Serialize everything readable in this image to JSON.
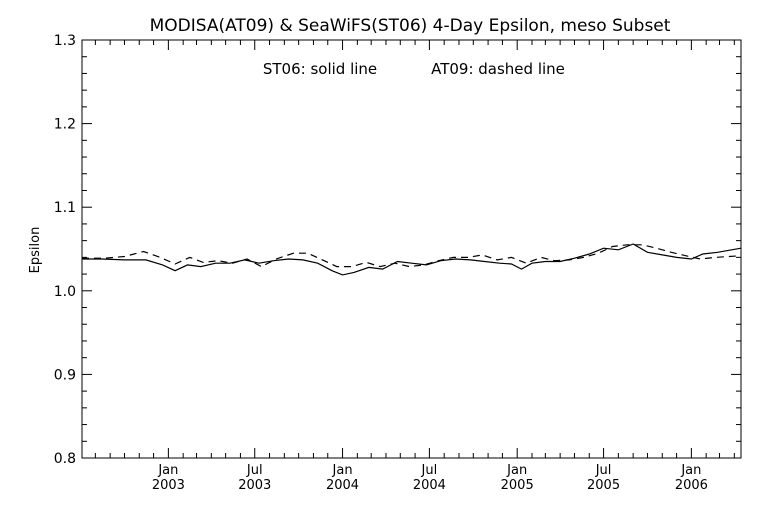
{
  "chart_data": {
    "type": "line",
    "title": "MODISA(AT09) & SeaWiFS(ST06) 4-Day Epsilon, meso Subset",
    "annotations": [
      "ST06: solid line",
      "AT09: dashed line"
    ],
    "xlabel": "",
    "ylabel": "Epsilon",
    "ylim": [
      0.8,
      1.3
    ],
    "yticks": [
      "0.8",
      "0.9",
      "1.0",
      "1.1",
      "1.2",
      "1.3"
    ],
    "xlim": [
      "2002-07-04",
      "2006-04-15"
    ],
    "xticks": [
      {
        "date": "2003-01-01",
        "label1": "Jan",
        "label2": "2003"
      },
      {
        "date": "2003-07-01",
        "label1": "Jul",
        "label2": "2003"
      },
      {
        "date": "2004-01-01",
        "label1": "Jan",
        "label2": "2004"
      },
      {
        "date": "2004-07-01",
        "label1": "Jul",
        "label2": "2004"
      },
      {
        "date": "2005-01-01",
        "label1": "Jan",
        "label2": "2005"
      },
      {
        "date": "2005-07-01",
        "label1": "Jul",
        "label2": "2005"
      },
      {
        "date": "2006-01-01",
        "label1": "Jan",
        "label2": "2006"
      }
    ],
    "grid": false,
    "series": [
      {
        "name": "ST06",
        "style": "solid",
        "color": "#000000",
        "points": [
          [
            "2002-07-04",
            1.038
          ],
          [
            "2002-08-15",
            1.038
          ],
          [
            "2002-10-01",
            1.037
          ],
          [
            "2002-11-15",
            1.037
          ],
          [
            "2002-12-20",
            1.031
          ],
          [
            "2003-01-15",
            1.024
          ],
          [
            "2003-02-10",
            1.031
          ],
          [
            "2003-03-10",
            1.029
          ],
          [
            "2003-04-10",
            1.033
          ],
          [
            "2003-05-10",
            1.033
          ],
          [
            "2003-06-10",
            1.037
          ],
          [
            "2003-07-10",
            1.033
          ],
          [
            "2003-08-10",
            1.036
          ],
          [
            "2003-09-10",
            1.038
          ],
          [
            "2003-10-10",
            1.037
          ],
          [
            "2003-11-10",
            1.033
          ],
          [
            "2003-12-10",
            1.024
          ],
          [
            "2004-01-01",
            1.019
          ],
          [
            "2004-01-25",
            1.022
          ],
          [
            "2004-02-25",
            1.028
          ],
          [
            "2004-03-25",
            1.026
          ],
          [
            "2004-04-25",
            1.035
          ],
          [
            "2004-05-25",
            1.033
          ],
          [
            "2004-06-25",
            1.031
          ],
          [
            "2004-07-25",
            1.036
          ],
          [
            "2004-08-25",
            1.038
          ],
          [
            "2004-09-25",
            1.037
          ],
          [
            "2004-10-25",
            1.035
          ],
          [
            "2004-11-25",
            1.033
          ],
          [
            "2004-12-20",
            1.032
          ],
          [
            "2005-01-10",
            1.026
          ],
          [
            "2005-02-01",
            1.033
          ],
          [
            "2005-03-01",
            1.035
          ],
          [
            "2005-04-01",
            1.035
          ],
          [
            "2005-05-01",
            1.039
          ],
          [
            "2005-06-01",
            1.044
          ],
          [
            "2005-07-01",
            1.051
          ],
          [
            "2005-08-01",
            1.049
          ],
          [
            "2005-09-01",
            1.056
          ],
          [
            "2005-10-01",
            1.046
          ],
          [
            "2005-11-01",
            1.043
          ],
          [
            "2005-12-01",
            1.04
          ],
          [
            "2006-01-01",
            1.038
          ],
          [
            "2006-01-25",
            1.044
          ],
          [
            "2006-02-25",
            1.046
          ],
          [
            "2006-04-15",
            1.051
          ]
        ]
      },
      {
        "name": "AT09",
        "style": "dashed",
        "color": "#000000",
        "points": [
          [
            "2002-07-04",
            1.039
          ],
          [
            "2002-08-20",
            1.039
          ],
          [
            "2002-10-01",
            1.041
          ],
          [
            "2002-11-10",
            1.047
          ],
          [
            "2002-12-15",
            1.04
          ],
          [
            "2003-01-15",
            1.032
          ],
          [
            "2003-02-15",
            1.04
          ],
          [
            "2003-03-15",
            1.034
          ],
          [
            "2003-04-15",
            1.036
          ],
          [
            "2003-05-15",
            1.033
          ],
          [
            "2003-06-15",
            1.038
          ],
          [
            "2003-07-15",
            1.029
          ],
          [
            "2003-08-15",
            1.038
          ],
          [
            "2003-09-20",
            1.045
          ],
          [
            "2003-10-20",
            1.045
          ],
          [
            "2003-11-20",
            1.037
          ],
          [
            "2003-12-20",
            1.029
          ],
          [
            "2004-01-20",
            1.029
          ],
          [
            "2004-02-20",
            1.034
          ],
          [
            "2004-03-20",
            1.029
          ],
          [
            "2004-04-20",
            1.033
          ],
          [
            "2004-05-20",
            1.029
          ],
          [
            "2004-06-20",
            1.031
          ],
          [
            "2004-07-20",
            1.036
          ],
          [
            "2004-08-20",
            1.04
          ],
          [
            "2004-09-20",
            1.04
          ],
          [
            "2004-10-20",
            1.043
          ],
          [
            "2004-11-20",
            1.037
          ],
          [
            "2004-12-20",
            1.04
          ],
          [
            "2005-01-20",
            1.033
          ],
          [
            "2005-02-20",
            1.04
          ],
          [
            "2005-03-20",
            1.036
          ],
          [
            "2005-04-20",
            1.037
          ],
          [
            "2005-05-20",
            1.04
          ],
          [
            "2005-06-20",
            1.045
          ],
          [
            "2005-07-20",
            1.053
          ],
          [
            "2005-08-20",
            1.055
          ],
          [
            "2005-09-20",
            1.055
          ],
          [
            "2005-10-20",
            1.051
          ],
          [
            "2005-11-20",
            1.046
          ],
          [
            "2005-12-20",
            1.042
          ],
          [
            "2006-01-20",
            1.038
          ],
          [
            "2006-02-20",
            1.04
          ],
          [
            "2006-04-15",
            1.042
          ]
        ]
      }
    ]
  }
}
